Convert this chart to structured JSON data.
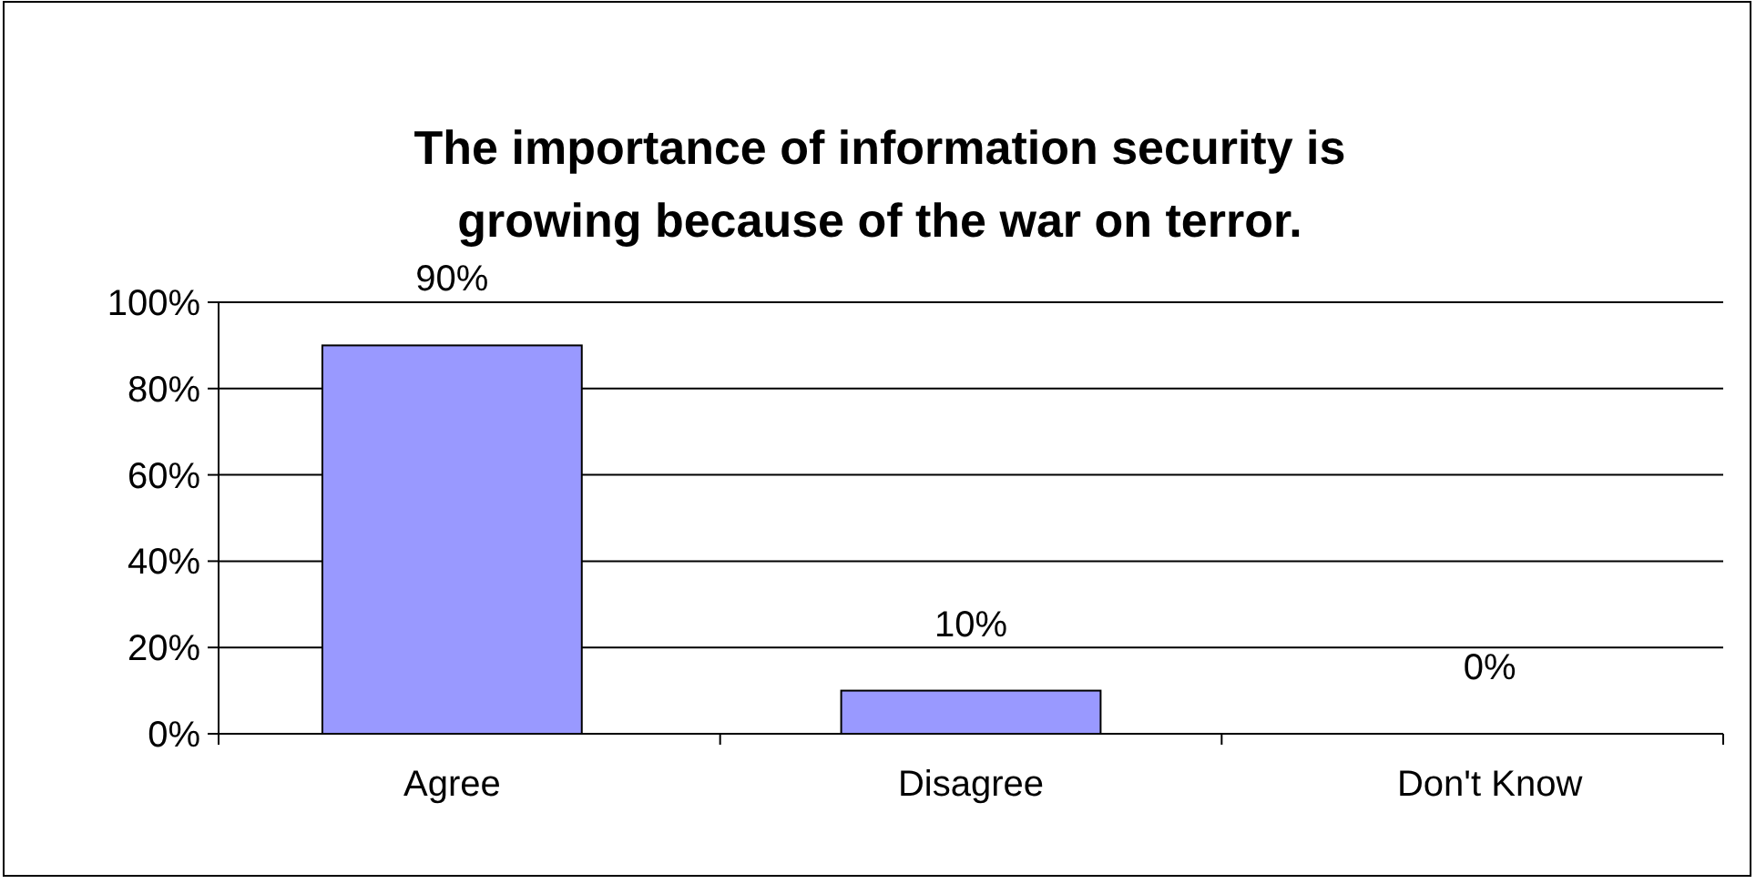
{
  "chart_data": {
    "type": "bar",
    "title": "The importance of information security is growing because of the war on terror.",
    "categories": [
      "Agree",
      "Disagree",
      "Don't Know"
    ],
    "values": [
      90,
      10,
      0
    ],
    "color": "#9999ff",
    "value_labels": [
      "90%",
      "10%",
      "0%"
    ],
    "ylim": [
      0,
      100
    ],
    "yticks": [
      {
        "value": 0,
        "label": "0%"
      },
      {
        "value": 20,
        "label": "20%"
      },
      {
        "value": 40,
        "label": "40%"
      },
      {
        "value": 60,
        "label": "60%"
      },
      {
        "value": 80,
        "label": "80%"
      },
      {
        "value": 100,
        "label": "100%"
      }
    ],
    "grid": "y"
  }
}
